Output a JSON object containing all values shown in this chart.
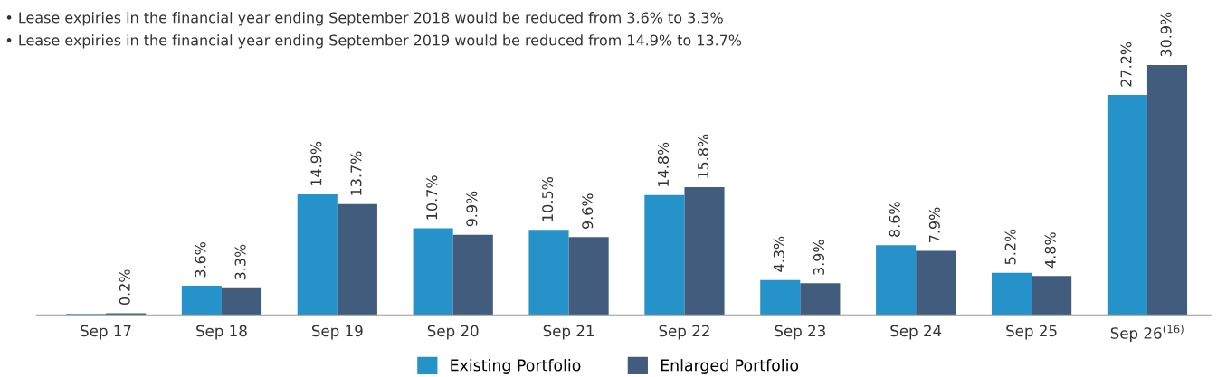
{
  "chart_data": {
    "type": "bar",
    "categories": [
      "Sep 17",
      "Sep 18",
      "Sep 19",
      "Sep 20",
      "Sep 21",
      "Sep 22",
      "Sep 23",
      "Sep 24",
      "Sep 25",
      "Sep 26$^{(16)}$"
    ],
    "series": [
      {
        "name": "Existing Portfolio",
        "color": "#2592c9",
        "values": [
          0.1,
          3.6,
          14.9,
          10.7,
          10.5,
          14.8,
          4.3,
          8.6,
          5.2,
          27.2
        ],
        "value_labels": [
          null,
          "3.6%",
          "14.9%",
          "10.7%",
          "10.5%",
          "14.8%",
          "4.3%",
          "8.6%",
          "5.2%",
          "27.2%"
        ]
      },
      {
        "name": "Enlarged Portfolio",
        "color": "#425c7e",
        "values": [
          0.2,
          3.3,
          13.7,
          9.9,
          9.6,
          15.8,
          3.9,
          7.9,
          4.8,
          30.9
        ],
        "value_labels": [
          "0.2%",
          "3.3%",
          "13.7%",
          "9.9%",
          "9.6%",
          "15.8%",
          "3.9%",
          "7.9%",
          "4.8%",
          "30.9%"
        ]
      }
    ],
    "annotations": [
      "• Lease expiries in the financial year ending September 2018 would be reduced from 3.6% to 3.3%",
      "• Lease expiries in the financial year ending September 2019 would be reduced from 14.9% to 13.7%"
    ],
    "legend": "bottom",
    "grid": false
  }
}
